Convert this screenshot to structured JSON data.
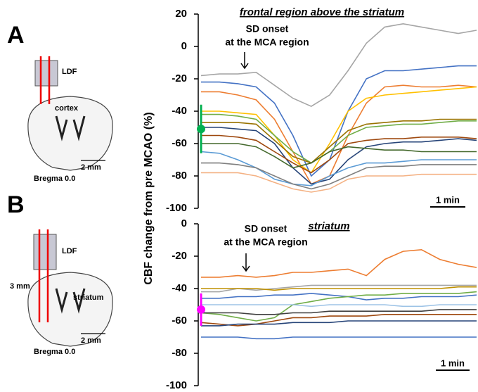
{
  "ylabel": "CBF change from pre MCAO (%)",
  "panels": [
    {
      "letter": "A",
      "probe": "LDF",
      "region": "cortex",
      "scale": "2 mm",
      "bregma": "Bregma 0.0"
    },
    {
      "letter": "B",
      "probe": "LDF",
      "depth": "3 mm",
      "region": "striatum",
      "scale": "2 mm",
      "bregma": "Bregma 0.0"
    }
  ],
  "chart_data": [
    {
      "type": "line",
      "title": "frontal region above the striatum",
      "title_color": "#00b050",
      "ylim": [
        -100,
        20
      ],
      "yticks": [
        -100,
        -80,
        -60,
        -40,
        -20,
        0,
        20
      ],
      "annotation": [
        "SD onset",
        "at the MCA region"
      ],
      "scale_bar": "1 min",
      "mean": {
        "value": -51,
        "error": 15,
        "color": "#00b050"
      },
      "series": [
        {
          "color": "#a6a6a6",
          "values": [
            -18,
            -17,
            -17,
            -16,
            -24,
            -32,
            -37,
            -30,
            -15,
            2,
            12,
            14,
            12,
            10,
            8,
            10
          ]
        },
        {
          "color": "#4472c4",
          "values": [
            -22,
            -22,
            -23,
            -25,
            -35,
            -55,
            -80,
            -70,
            -40,
            -20,
            -15,
            -15,
            -14,
            -13,
            -12,
            -12
          ]
        },
        {
          "color": "#ed7d31",
          "values": [
            -28,
            -28,
            -30,
            -33,
            -45,
            -65,
            -85,
            -80,
            -55,
            -35,
            -25,
            -24,
            -25,
            -25,
            -24,
            -25
          ]
        },
        {
          "color": "#ffc000",
          "values": [
            -40,
            -40,
            -41,
            -42,
            -55,
            -70,
            -78,
            -60,
            -40,
            -32,
            -30,
            -29,
            -28,
            -27,
            -26,
            -25
          ]
        },
        {
          "color": "#70ad47",
          "values": [
            -42,
            -42,
            -43,
            -45,
            -55,
            -65,
            -72,
            -65,
            -55,
            -50,
            -49,
            -48,
            -48,
            -47,
            -46,
            -46
          ]
        },
        {
          "color": "#264478",
          "values": [
            -50,
            -50,
            -51,
            -52,
            -60,
            -75,
            -85,
            -82,
            -70,
            -62,
            -60,
            -59,
            -59,
            -58,
            -57,
            -58
          ]
        },
        {
          "color": "#9e480e",
          "values": [
            -55,
            -55,
            -56,
            -58,
            -65,
            -72,
            -78,
            -70,
            -60,
            -58,
            -57,
            -57,
            -56,
            -56,
            -56,
            -57
          ]
        },
        {
          "color": "#5b9bd5",
          "values": [
            -65,
            -66,
            -70,
            -75,
            -82,
            -85,
            -86,
            -80,
            -75,
            -72,
            -72,
            -71,
            -70,
            -70,
            -70,
            -70
          ]
        },
        {
          "color": "#7f7f7f",
          "values": [
            -72,
            -72,
            -73,
            -75,
            -80,
            -85,
            -88,
            -85,
            -80,
            -75,
            -74,
            -74,
            -73,
            -73,
            -73,
            -73
          ]
        },
        {
          "color": "#f4b183",
          "values": [
            -78,
            -78,
            -78,
            -80,
            -84,
            -88,
            -90,
            -88,
            -82,
            -80,
            -80,
            -80,
            -79,
            -79,
            -79,
            -79
          ]
        },
        {
          "color": "#997300",
          "values": [
            -47,
            -47,
            -47,
            -48,
            -58,
            -68,
            -72,
            -62,
            -52,
            -48,
            -47,
            -46,
            -46,
            -45,
            -45,
            -45
          ]
        },
        {
          "color": "#43682b",
          "values": [
            -60,
            -60,
            -60,
            -62,
            -68,
            -75,
            -72,
            -65,
            -62,
            -63,
            -64,
            -64,
            -65,
            -65,
            -65,
            -65
          ]
        }
      ]
    },
    {
      "type": "line",
      "title": "striatum",
      "title_color": "#ff00ff",
      "ylim": [
        -100,
        0
      ],
      "yticks": [
        -100,
        -80,
        -60,
        -40,
        -20,
        0
      ],
      "annotation": [
        "SD onset",
        "at the MCA region"
      ],
      "scale_bar": "1 min",
      "mean": {
        "value": -53,
        "error": 10,
        "color": "#ff00ff"
      },
      "series": [
        {
          "color": "#ed7d31",
          "values": [
            -33,
            -33,
            -32,
            -33,
            -32,
            -30,
            -30,
            -29,
            -28,
            -32,
            -22,
            -17,
            -16,
            -22,
            -25,
            -27
          ]
        },
        {
          "color": "#a5a5a5",
          "values": [
            -42,
            -42,
            -40,
            -41,
            -40,
            -39,
            -38,
            -38,
            -38,
            -38,
            -38,
            -38,
            -38,
            -38,
            -38,
            -38
          ]
        },
        {
          "color": "#bf9000",
          "values": [
            -40,
            -40,
            -40,
            -40,
            -41,
            -40,
            -40,
            -40,
            -40,
            -40,
            -40,
            -40,
            -40,
            -40,
            -39,
            -39
          ]
        },
        {
          "color": "#4472c4",
          "values": [
            -46,
            -46,
            -45,
            -45,
            -44,
            -44,
            -43,
            -44,
            -45,
            -47,
            -46,
            -46,
            -45,
            -45,
            -45,
            -44
          ]
        },
        {
          "color": "#70ad47",
          "values": [
            -55,
            -56,
            -58,
            -60,
            -58,
            -50,
            -48,
            -46,
            -45,
            -44,
            -44,
            -43,
            -43,
            -43,
            -43,
            -42
          ]
        },
        {
          "color": "#404040",
          "values": [
            -55,
            -55,
            -55,
            -56,
            -56,
            -55,
            -55,
            -54,
            -54,
            -54,
            -54,
            -54,
            -54,
            -53,
            -53,
            -53
          ]
        },
        {
          "color": "#9e480e",
          "values": [
            -61,
            -62,
            -63,
            -62,
            -60,
            -58,
            -58,
            -57,
            -57,
            -57,
            -56,
            -56,
            -56,
            -56,
            -56,
            -56
          ]
        },
        {
          "color": "#9dc3e6",
          "values": [
            -50,
            -50,
            -50,
            -50,
            -50,
            -50,
            -51,
            -50,
            -50,
            -50,
            -50,
            -51,
            -51,
            -50,
            -50,
            -50
          ]
        },
        {
          "color": "#264478",
          "values": [
            -63,
            -63,
            -62,
            -62,
            -62,
            -61,
            -61,
            -61,
            -60,
            -60,
            -60,
            -60,
            -60,
            -60,
            -60,
            -60
          ]
        },
        {
          "color": "#4472c4",
          "values": [
            -70,
            -70,
            -70,
            -71,
            -71,
            -70,
            -70,
            -70,
            -70,
            -70,
            -70,
            -70,
            -70,
            -70,
            -70,
            -70
          ]
        }
      ]
    }
  ]
}
